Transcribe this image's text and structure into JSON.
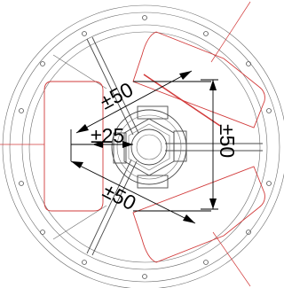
{
  "drawing": {
    "colors": {
      "line": "#4a4a4a",
      "dimension": "#000000",
      "zone": "#d23b3b",
      "background": "#ffffff"
    },
    "labels": {
      "dim_upper": "±50",
      "dim_center": "±25",
      "dim_right": "±50",
      "dim_lower": "±50"
    }
  }
}
